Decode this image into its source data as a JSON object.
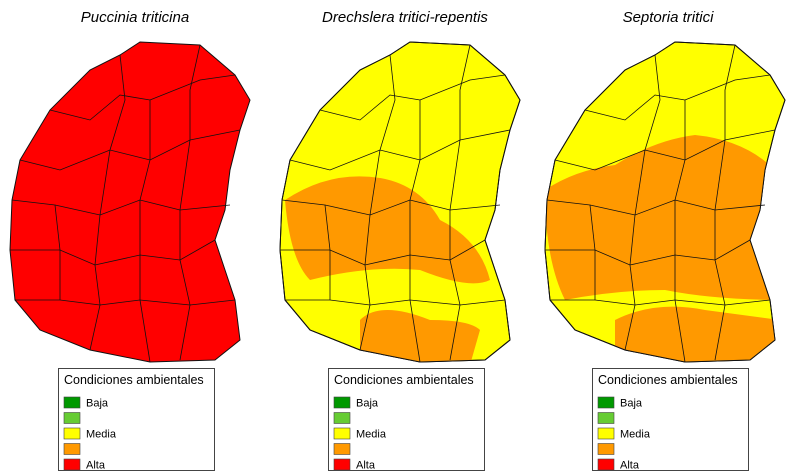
{
  "panels": [
    {
      "title": "Puccinia triticina"
    },
    {
      "title": "Drechslera tritici-repentis"
    },
    {
      "title": "Septoria tritici"
    }
  ],
  "legend": {
    "title": "Condiciones ambientales",
    "levels": [
      {
        "color": "#009900",
        "label": "Baja"
      },
      {
        "color": "#66cc33"
      },
      {
        "color": "#ffff00",
        "label": "Media"
      },
      {
        "color": "#ff9900"
      },
      {
        "color": "#ff0000",
        "label": "Alta"
      }
    ]
  }
}
